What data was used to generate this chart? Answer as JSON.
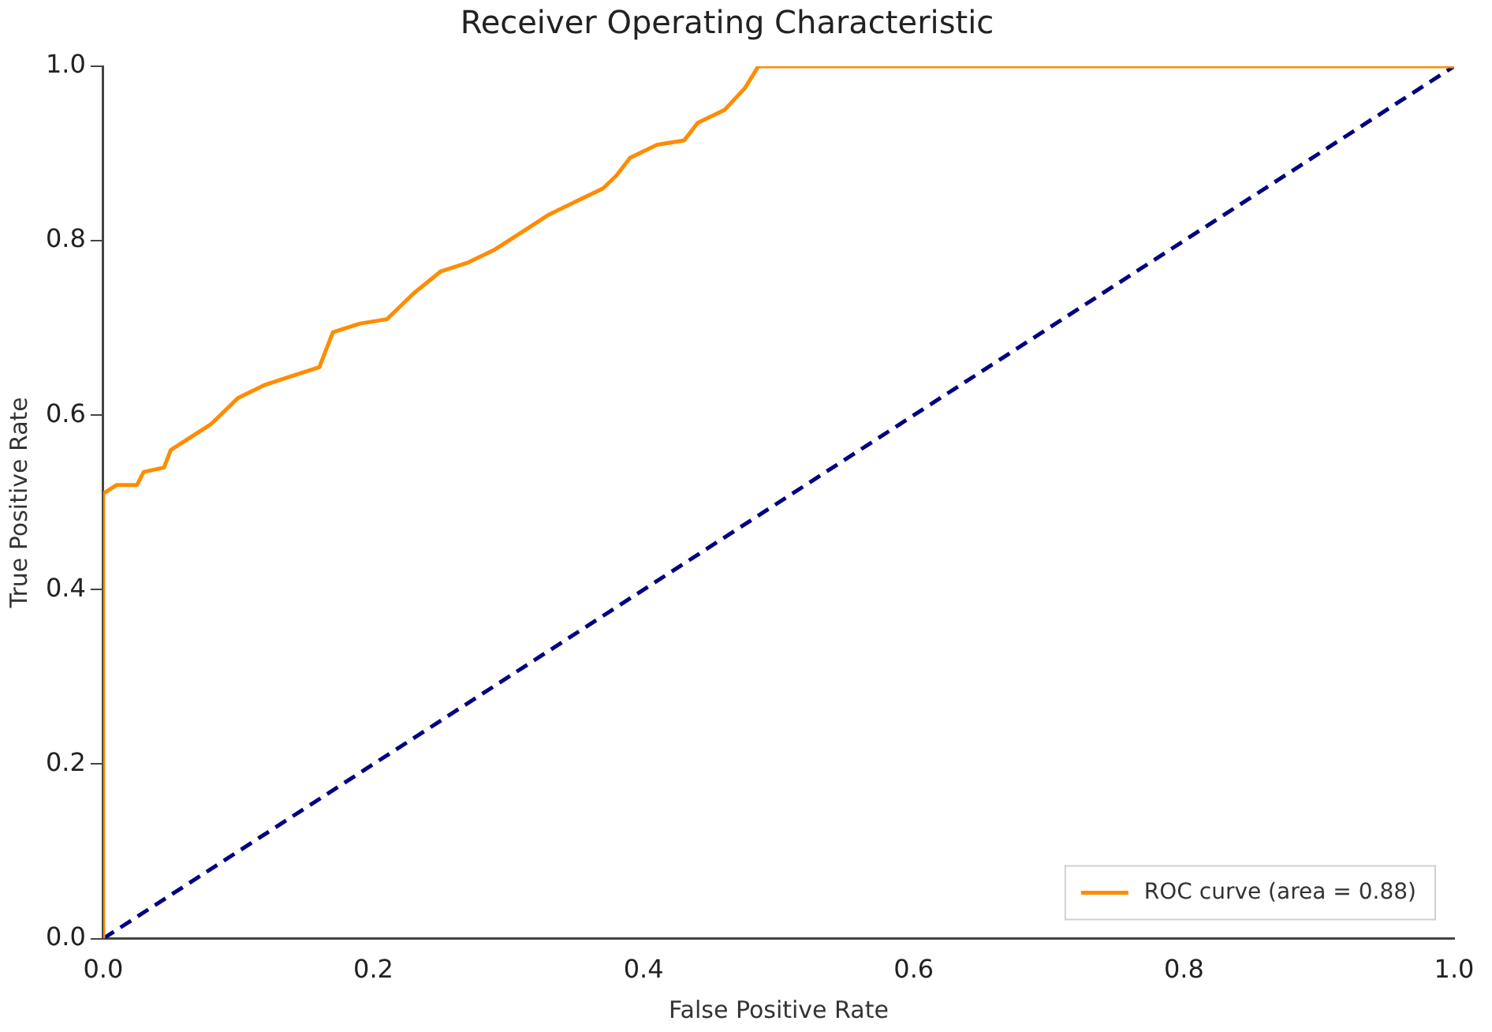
{
  "chart_data": {
    "type": "line",
    "title": "Receiver Operating Characteristic",
    "xlabel": "False Positive Rate",
    "ylabel": "True Positive Rate",
    "xlim": [
      0,
      1
    ],
    "ylim": [
      0,
      1
    ],
    "xticks": [
      {
        "value": 0,
        "label": "0.0"
      },
      0.2,
      0.4,
      0.6,
      0.8,
      {
        "value": 1,
        "label": "1.0"
      }
    ],
    "yticks": [
      {
        "value": 0,
        "label": "0.0"
      },
      0.2,
      0.4,
      0.6,
      0.8,
      {
        "value": 1,
        "label": "1.0"
      }
    ],
    "grid": false,
    "legend": "bottom right",
    "marker": "none",
    "series": [
      {
        "name": "ROC curve (area = 0.88)",
        "color": "#ff8c00",
        "line_style": "solid",
        "x": [
          0,
          0,
          0.01,
          0.025,
          0.03,
          0.045,
          0.05,
          0.06,
          0.08,
          0.1,
          0.12,
          0.14,
          0.16,
          0.17,
          0.19,
          0.21,
          0.23,
          0.25,
          0.27,
          0.29,
          0.31,
          0.33,
          0.35,
          0.37,
          0.38,
          0.39,
          0.41,
          0.43,
          0.44,
          0.46,
          0.475,
          0.485,
          1
        ],
        "values": [
          0,
          0.51,
          0.52,
          0.52,
          0.535,
          0.54,
          0.56,
          0.57,
          0.59,
          0.62,
          0.635,
          0.645,
          0.655,
          0.695,
          0.705,
          0.71,
          0.74,
          0.765,
          0.775,
          0.79,
          0.81,
          0.83,
          0.845,
          0.86,
          0.875,
          0.895,
          0.91,
          0.915,
          0.935,
          0.95,
          0.975,
          1,
          1
        ]
      },
      {
        "color": "#000080",
        "line_style": "dashed",
        "x": [
          0,
          1
        ],
        "values": [
          0,
          1
        ]
      }
    ]
  }
}
